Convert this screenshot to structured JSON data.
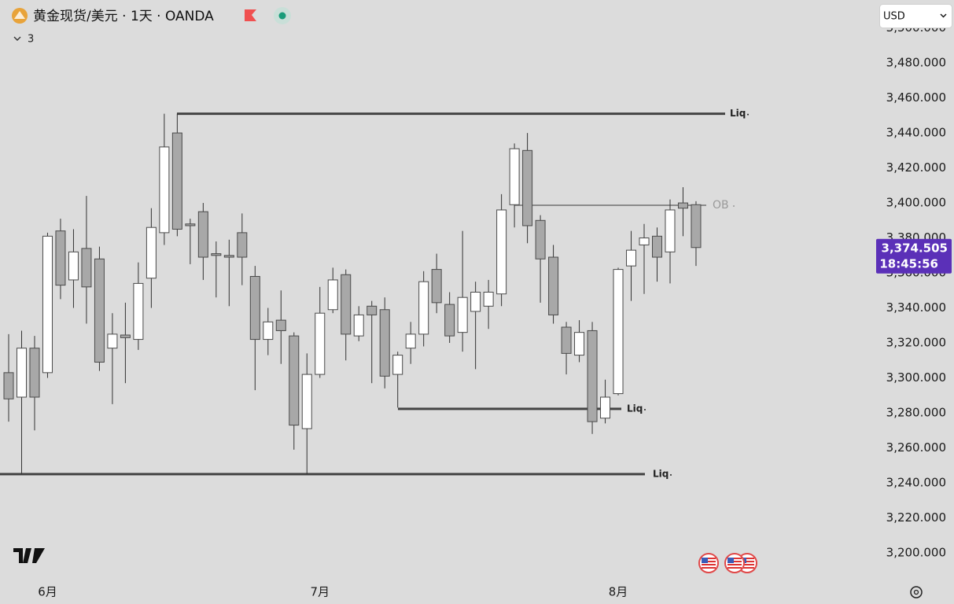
{
  "chart_data": {
    "type": "candlestick",
    "title": "黄金现货/美元 · 1天 · OANDA",
    "indicators": 3,
    "currency": "USD",
    "countdown": "18:45:56",
    "last_price": {
      "value": 3374.505,
      "label": "3,374.505"
    },
    "categories": [
      null,
      null,
      null,
      "6月",
      null,
      null,
      null,
      null,
      null,
      null,
      null,
      null,
      null,
      null,
      null,
      null,
      null,
      null,
      null,
      null,
      null,
      null,
      null,
      null,
      "7月",
      null,
      null,
      null,
      null,
      null,
      null,
      null,
      null,
      null,
      null,
      null,
      null,
      null,
      null,
      null,
      null,
      null,
      null,
      null,
      null,
      null,
      null,
      "8月",
      null,
      null,
      null,
      null,
      null,
      null
    ],
    "series": [
      {
        "up_color": "#ffffff",
        "down_color": "#a8a8a8",
        "outline_color": "#4a4a4a",
        "open": [
          3303,
          3289,
          3317,
          3303,
          3384,
          3356,
          3374,
          3368,
          3317,
          3324.5,
          3322,
          3357,
          3383,
          3440,
          3388,
          3395,
          3371,
          3370,
          3383,
          3358,
          3322,
          3333,
          3324,
          3271,
          3302,
          3339,
          3359,
          3324,
          3341,
          3339,
          3302,
          3317,
          3325,
          3362,
          3342,
          3326,
          3338,
          3341,
          3348,
          3399,
          3430,
          3390,
          3369,
          3329,
          3313,
          3327,
          3277,
          3291,
          3364,
          3376,
          3381,
          3372,
          3400,
          3399
        ],
        "high": [
          3325,
          3327,
          3324,
          3383,
          3391,
          3385,
          3404,
          3375,
          3337,
          3343,
          3366,
          3397,
          3451,
          3451,
          3391,
          3400,
          3378,
          3379,
          3394,
          3364,
          3340,
          3350,
          3326,
          3314,
          3352,
          3363,
          3362,
          3341,
          3344,
          3346,
          3315,
          3332,
          3361,
          3371,
          3349,
          3384,
          3355,
          3356,
          3405,
          3434,
          3440,
          3393,
          3376,
          3332,
          3333,
          3332,
          3299,
          3363,
          3384,
          3388,
          3386,
          3402,
          3409,
          3401
        ],
        "low": [
          3275,
          3245,
          3270,
          3300,
          3345,
          3340,
          3331,
          3304,
          3285,
          3297,
          3316,
          3340,
          3376,
          3381,
          3365,
          3356,
          3346,
          3341,
          3353,
          3293,
          3313,
          3308,
          3259,
          3245,
          3300,
          3337,
          3310,
          3321,
          3297,
          3294,
          3283,
          3308,
          3318,
          3337,
          3320,
          3315,
          3305,
          3328,
          3341,
          3386,
          3377,
          3343,
          3331,
          3302,
          3309,
          3268,
          3274,
          3290,
          3344,
          3348,
          3355,
          3354,
          3381,
          3364
        ],
        "close": [
          3288,
          3317,
          3289,
          3381,
          3353,
          3372,
          3352,
          3309,
          3325,
          3323,
          3354,
          3386,
          3432,
          3385,
          3387,
          3369,
          3370,
          3369,
          3369,
          3322,
          3332,
          3327,
          3273,
          3302,
          3337,
          3356,
          3325,
          3336,
          3336,
          3301,
          3313,
          3325,
          3355,
          3343,
          3324,
          3346,
          3349,
          3349,
          3396,
          3431,
          3387,
          3368,
          3336,
          3314,
          3326,
          3275,
          3289,
          3362,
          3373,
          3380,
          3369,
          3396,
          3397,
          3374.505
        ]
      }
    ],
    "levels": [
      {
        "label": "Liq",
        "value": 3451,
        "color": "#444444"
      },
      {
        "label": "Liq",
        "value": 3282.3,
        "color": "#444444"
      },
      {
        "label": "Liq",
        "value": 3245,
        "color": "#444444"
      },
      {
        "label": "OB",
        "value": 3398.7,
        "color": "#8a8a8a"
      }
    ],
    "ylim": [
      3185.6,
      3516
    ],
    "yticks": [
      {
        "value": 3200,
        "label": "3,200.000"
      },
      {
        "value": 3220,
        "label": "3,220.000"
      },
      {
        "value": 3240,
        "label": "3,240.000"
      },
      {
        "value": 3260,
        "label": "3,260.000"
      },
      {
        "value": 3280,
        "label": "3,280.000"
      },
      {
        "value": 3300,
        "label": "3,300.000"
      },
      {
        "value": 3320,
        "label": "3,320.000"
      },
      {
        "value": 3340,
        "label": "3,340.000"
      },
      {
        "value": 3360,
        "label": "3,360.000"
      },
      {
        "value": 3380,
        "label": "3,380.000"
      },
      {
        "value": 3400,
        "label": "3,400.000"
      },
      {
        "value": 3420,
        "label": "3,420.000"
      },
      {
        "value": 3440,
        "label": "3,440.000"
      },
      {
        "value": 3460,
        "label": "3,460.000"
      },
      {
        "value": 3480,
        "label": "3,480.000"
      },
      {
        "value": 3500,
        "label": "3,500.000"
      }
    ],
    "grid": false
  }
}
